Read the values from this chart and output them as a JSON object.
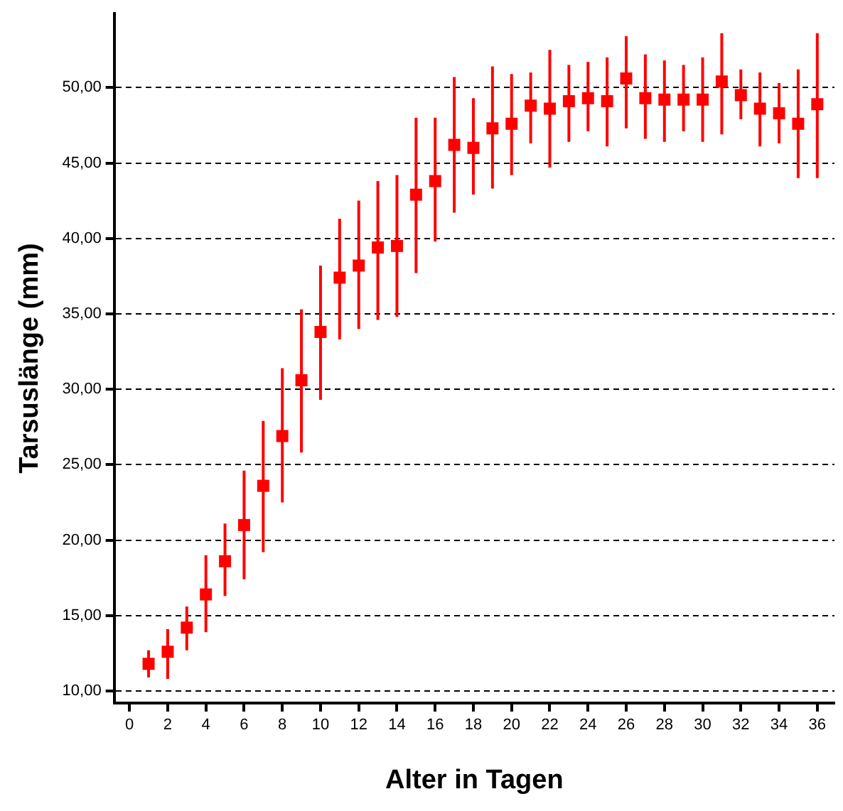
{
  "chart_data": {
    "type": "scatter",
    "xlabel": "Alter in Tagen",
    "ylabel": "Tarsuslänge (mm)",
    "x": [
      1,
      2,
      3,
      4,
      5,
      6,
      7,
      8,
      9,
      10,
      11,
      12,
      13,
      14,
      15,
      16,
      17,
      18,
      19,
      20,
      21,
      22,
      23,
      24,
      25,
      26,
      27,
      28,
      29,
      30,
      31,
      32,
      33,
      34,
      35,
      36
    ],
    "series": [
      {
        "color": "#ff0000",
        "values": [
          11.8,
          12.6,
          14.2,
          16.4,
          18.6,
          21.0,
          23.6,
          26.9,
          30.6,
          33.8,
          37.4,
          38.2,
          39.4,
          39.5,
          42.9,
          43.8,
          46.2,
          46.0,
          47.3,
          47.6,
          48.8,
          48.6,
          49.1,
          49.3,
          49.1,
          50.6,
          49.3,
          49.2,
          49.2,
          49.2,
          50.4,
          49.5,
          48.6,
          48.3,
          47.6,
          48.9
        ],
        "errors": [
          [
            10.9,
            12.7
          ],
          [
            10.8,
            14.1
          ],
          [
            12.7,
            15.6
          ],
          [
            13.9,
            19.0
          ],
          [
            16.3,
            21.1
          ],
          [
            17.4,
            24.6
          ],
          [
            19.2,
            27.9
          ],
          [
            22.5,
            31.4
          ],
          [
            25.8,
            35.3
          ],
          [
            29.3,
            38.2
          ],
          [
            33.3,
            41.3
          ],
          [
            34.0,
            42.5
          ],
          [
            34.6,
            43.8
          ],
          [
            34.8,
            44.2
          ],
          [
            37.7,
            48.0
          ],
          [
            39.8,
            48.0
          ],
          [
            41.7,
            50.7
          ],
          [
            42.9,
            49.3
          ],
          [
            43.3,
            51.4
          ],
          [
            44.2,
            50.9
          ],
          [
            46.3,
            51.0
          ],
          [
            44.7,
            52.5
          ],
          [
            46.4,
            51.5
          ],
          [
            47.1,
            51.7
          ],
          [
            46.1,
            52.0
          ],
          [
            47.3,
            53.4
          ],
          [
            46.6,
            52.2
          ],
          [
            46.4,
            51.8
          ],
          [
            47.1,
            51.5
          ],
          [
            46.4,
            52.0
          ],
          [
            46.9,
            53.6
          ],
          [
            47.9,
            51.2
          ],
          [
            46.1,
            51.0
          ],
          [
            46.3,
            50.3
          ],
          [
            44.0,
            51.2
          ],
          [
            44.0,
            53.6
          ]
        ]
      }
    ],
    "xlim": [
      -0.8,
      36.9
    ],
    "xticks": [
      0,
      2,
      4,
      6,
      8,
      10,
      12,
      14,
      16,
      18,
      20,
      22,
      24,
      26,
      28,
      30,
      32,
      34,
      36
    ],
    "ylim": [
      9.2,
      54.9
    ],
    "yticks": [
      {
        "value": 10,
        "label": "10,00"
      },
      {
        "value": 15,
        "label": "15,00"
      },
      {
        "value": 20,
        "label": "20,00"
      },
      {
        "value": 25,
        "label": "25,00"
      },
      {
        "value": 30,
        "label": "30,00"
      },
      {
        "value": 35,
        "label": "35,00"
      },
      {
        "value": 40,
        "label": "40,00"
      },
      {
        "value": 45,
        "label": "45,00"
      },
      {
        "value": 50,
        "label": "50,00"
      }
    ],
    "grid": "y",
    "legend": false,
    "marker": "square"
  }
}
